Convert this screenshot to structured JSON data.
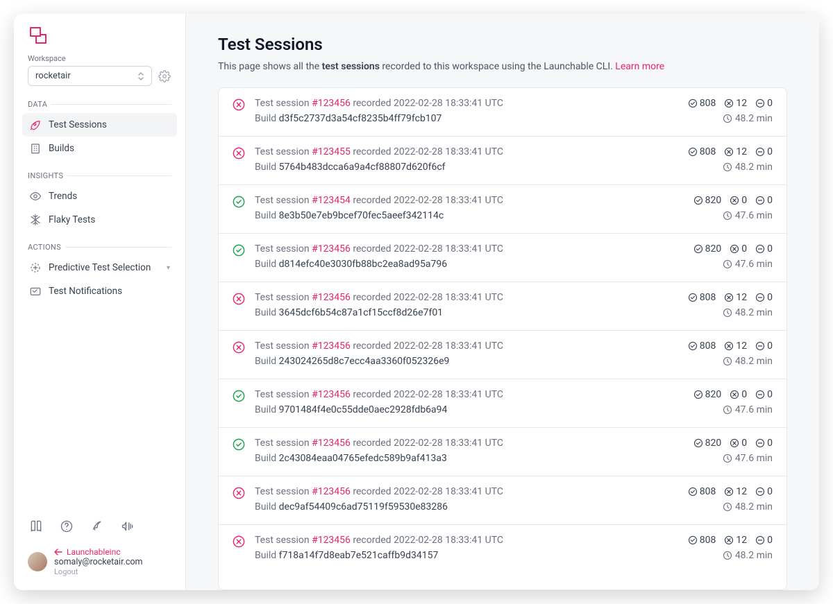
{
  "colors": {
    "accent": "#e6266e",
    "success": "#16a34a",
    "text_primary": "#111827",
    "text_secondary": "#6b7280",
    "border": "#e5e7eb",
    "sidebar_active_bg": "#f3f4f6",
    "main_bg": "#f6f7f9"
  },
  "sidebar": {
    "workspace_label": "Workspace",
    "workspace_value": "rocketair",
    "sections": {
      "data": "DATA",
      "insights": "INSIGHTS",
      "actions": "ACTIONS"
    },
    "items": {
      "test_sessions": "Test Sessions",
      "builds": "Builds",
      "trends": "Trends",
      "flaky_tests": "Flaky Tests",
      "predictive": "Predictive Test Selection",
      "notifications": "Test Notifications"
    },
    "back_link": "Launchableinc",
    "user_email": "somaly@rocketair.com",
    "logout": "Logout"
  },
  "main": {
    "title": "Test Sessions",
    "desc_prefix": "This page shows all the ",
    "desc_bold": "test sessions",
    "desc_suffix": " recorded to this workspace using the Launchable CLI. ",
    "learn_more": "Learn more",
    "session_prefix": "Test session ",
    "recorded_prefix": " recorded ",
    "build_prefix": "Build "
  },
  "sessions": [
    {
      "status": "fail",
      "id": "#123456",
      "timestamp": "2022-02-28 18:33:41 UTC",
      "build": "d3f5c2737d3a54cf8235b4ff79fcb107",
      "passed": "808",
      "failed": "12",
      "skipped": "0",
      "duration": "48.2 min"
    },
    {
      "status": "fail",
      "id": "#123455",
      "timestamp": "2022-02-28 18:33:41 UTC",
      "build": "5764b483dcca6a9a4cf88807d620f6cf",
      "passed": "808",
      "failed": "12",
      "skipped": "0",
      "duration": "48.2 min"
    },
    {
      "status": "pass",
      "id": "#123454",
      "timestamp": "2022-02-28 18:33:41 UTC",
      "build": "8e3b50e7eb9bcef70fec5aeef342114c",
      "passed": "820",
      "failed": "0",
      "skipped": "0",
      "duration": "47.6 min"
    },
    {
      "status": "pass",
      "id": "#123456",
      "timestamp": "2022-02-28 18:33:41 UTC",
      "build": "d814efc40e3030fb88bc2ea8ad95a796",
      "passed": "820",
      "failed": "0",
      "skipped": "0",
      "duration": "47.6 min"
    },
    {
      "status": "fail",
      "id": "#123456",
      "timestamp": "2022-02-28 18:33:41 UTC",
      "build": "3645dcf6b54c87a1cf15ccf8d26e7f01",
      "passed": "808",
      "failed": "12",
      "skipped": "0",
      "duration": "48.2 min"
    },
    {
      "status": "fail",
      "id": "#123456",
      "timestamp": "2022-02-28 18:33:41 UTC",
      "build": "243024265d8c7ecc4aa3360f052326e9",
      "passed": "808",
      "failed": "12",
      "skipped": "0",
      "duration": "48.2 min"
    },
    {
      "status": "pass",
      "id": "#123456",
      "timestamp": "2022-02-28 18:33:41 UTC",
      "build": "9701484f4e0c55dde0aec2928fdb6a94",
      "passed": "820",
      "failed": "0",
      "skipped": "0",
      "duration": "47.6 min"
    },
    {
      "status": "pass",
      "id": "#123456",
      "timestamp": "2022-02-28 18:33:41 UTC",
      "build": "2c43084eaa04765efedc589b9af413a3",
      "passed": "820",
      "failed": "0",
      "skipped": "0",
      "duration": "47.6 min"
    },
    {
      "status": "fail",
      "id": "#123456",
      "timestamp": "2022-02-28 18:33:41 UTC",
      "build": "dec9af54409c6ad75119f59530e83286",
      "passed": "808",
      "failed": "12",
      "skipped": "0",
      "duration": "48.2 min"
    },
    {
      "status": "fail",
      "id": "#123456",
      "timestamp": "2022-02-28 18:33:41 UTC",
      "build": "f718a14f7d8eab7e521caffb9d34157",
      "passed": "808",
      "failed": "12",
      "skipped": "0",
      "duration": "48.2 min"
    }
  ]
}
